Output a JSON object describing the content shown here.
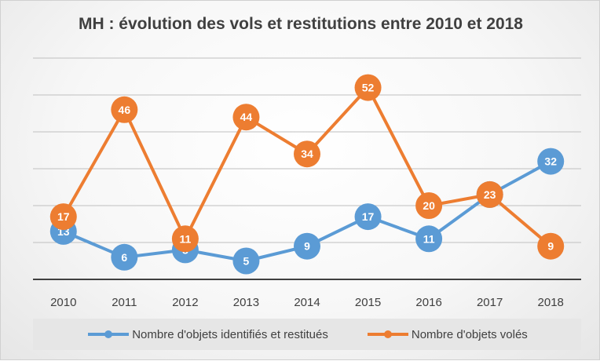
{
  "chart_data": {
    "type": "line",
    "title": "MH : évolution des vols et restitutions entre 2010 et 2018",
    "categories": [
      "2010",
      "2011",
      "2012",
      "2013",
      "2014",
      "2015",
      "2016",
      "2017",
      "2018"
    ],
    "ylim": [
      0,
      60
    ],
    "y_gridline_step": 10,
    "grid": true,
    "legend_position": "bottom",
    "series": [
      {
        "name": "Nombre d'objets identifiés et restitués",
        "color": "#5b9bd5",
        "values": [
          13,
          6,
          8,
          5,
          9,
          17,
          11,
          23,
          32
        ]
      },
      {
        "name": "Nombre d'objets volés",
        "color": "#ed7d31",
        "values": [
          17,
          46,
          11,
          44,
          34,
          52,
          20,
          23,
          9
        ]
      }
    ]
  }
}
